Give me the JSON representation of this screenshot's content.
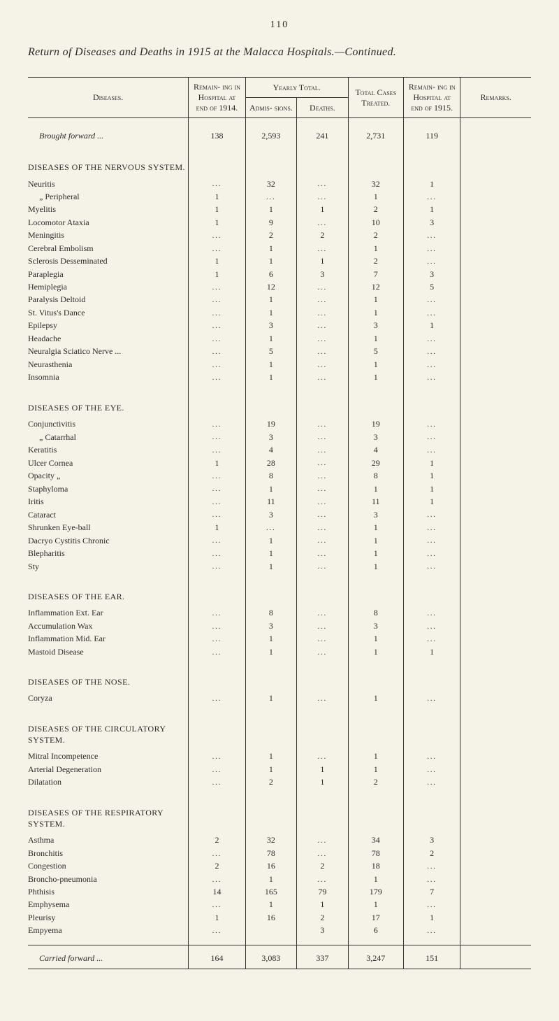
{
  "page_number": "110",
  "title": "Return of Diseases and Deaths in 1915 at the Malacca Hospitals.—Continued.",
  "headers": {
    "diseases": "Diseases.",
    "remain_in_1914": "Remain-\ning in\nHospital\nat end of\n1914.",
    "yearly_total": "Yearly Total.",
    "admissions": "Admis-\nsions.",
    "deaths": "Deaths.",
    "total_cases": "Total\nCases\nTreated.",
    "remain_in_1915": "Remain-\ning in\nHospital\nat end of\n1915.",
    "remarks": "Remarks."
  },
  "brought_forward": {
    "label": "Brought forward ...",
    "r14": "138",
    "adm": "2,593",
    "dth": "241",
    "tot": "2,731",
    "r15": "119"
  },
  "sections": [
    {
      "heading": "DISEASES OF THE NERVOUS SYSTEM.",
      "rows": [
        {
          "label": "Neuritis",
          "r14": "...",
          "adm": "32",
          "dth": "...",
          "tot": "32",
          "r15": "1"
        },
        {
          "label": "„      Peripheral",
          "indent": true,
          "r14": "1",
          "adm": "...",
          "dth": "...",
          "tot": "1",
          "r15": "..."
        },
        {
          "label": "Myelitis",
          "r14": "1",
          "adm": "1",
          "dth": "1",
          "tot": "2",
          "r15": "1"
        },
        {
          "label": "Locomotor Ataxia",
          "r14": "1",
          "adm": "9",
          "dth": "...",
          "tot": "10",
          "r15": "3"
        },
        {
          "label": "Meningitis",
          "r14": "...",
          "adm": "2",
          "dth": "2",
          "tot": "2",
          "r15": "..."
        },
        {
          "label": "Cerebral Embolism",
          "r14": "...",
          "adm": "1",
          "dth": "...",
          "tot": "1",
          "r15": "..."
        },
        {
          "label": "Sclerosis Desseminated",
          "r14": "1",
          "adm": "1",
          "dth": "1",
          "tot": "2",
          "r15": "..."
        },
        {
          "label": "Paraplegia",
          "r14": "1",
          "adm": "6",
          "dth": "3",
          "tot": "7",
          "r15": "3"
        },
        {
          "label": "Hemiplegia",
          "r14": "...",
          "adm": "12",
          "dth": "...",
          "tot": "12",
          "r15": "5"
        },
        {
          "label": "Paralysis Deltoid",
          "r14": "...",
          "adm": "1",
          "dth": "...",
          "tot": "1",
          "r15": "..."
        },
        {
          "label": "St. Vitus's Dance",
          "r14": "...",
          "adm": "1",
          "dth": "...",
          "tot": "1",
          "r15": "..."
        },
        {
          "label": "Epilepsy",
          "r14": "...",
          "adm": "3",
          "dth": "...",
          "tot": "3",
          "r15": "1"
        },
        {
          "label": "Headache",
          "r14": "...",
          "adm": "1",
          "dth": "...",
          "tot": "1",
          "r15": "..."
        },
        {
          "label": "Neuralgia Sciatico Nerve ...",
          "r14": "...",
          "adm": "5",
          "dth": "...",
          "tot": "5",
          "r15": "..."
        },
        {
          "label": "Neurasthenia",
          "r14": "...",
          "adm": "1",
          "dth": "...",
          "tot": "1",
          "r15": "..."
        },
        {
          "label": "Insomnia",
          "r14": "...",
          "adm": "1",
          "dth": "...",
          "tot": "1",
          "r15": "..."
        }
      ]
    },
    {
      "heading": "DISEASES OF THE EYE.",
      "rows": [
        {
          "label": "Conjunctivitis",
          "r14": "...",
          "adm": "19",
          "dth": "...",
          "tot": "19",
          "r15": "..."
        },
        {
          "label": "„           Catarrhal",
          "indent": true,
          "r14": "...",
          "adm": "3",
          "dth": "...",
          "tot": "3",
          "r15": "..."
        },
        {
          "label": "Keratitis",
          "r14": "...",
          "adm": "4",
          "dth": "...",
          "tot": "4",
          "r15": "..."
        },
        {
          "label": "Ulcer Cornea",
          "r14": "1",
          "adm": "28",
          "dth": "...",
          "tot": "29",
          "r15": "1"
        },
        {
          "label": "Opacity  „",
          "r14": "...",
          "adm": "8",
          "dth": "...",
          "tot": "8",
          "r15": "1"
        },
        {
          "label": "Staphyloma",
          "r14": "...",
          "adm": "1",
          "dth": "...",
          "tot": "1",
          "r15": "1"
        },
        {
          "label": "Iritis",
          "r14": "...",
          "adm": "11",
          "dth": "...",
          "tot": "11",
          "r15": "1"
        },
        {
          "label": "Cataract",
          "r14": "...",
          "adm": "3",
          "dth": "...",
          "tot": "3",
          "r15": "..."
        },
        {
          "label": "Shrunken Eye-ball",
          "r14": "1",
          "adm": "...",
          "dth": "...",
          "tot": "1",
          "r15": "..."
        },
        {
          "label": "Dacryo Cystitis Chronic",
          "r14": "...",
          "adm": "1",
          "dth": "...",
          "tot": "1",
          "r15": "..."
        },
        {
          "label": "Blepharitis",
          "r14": "...",
          "adm": "1",
          "dth": "...",
          "tot": "1",
          "r15": "..."
        },
        {
          "label": "Sty",
          "r14": "...",
          "adm": "1",
          "dth": "...",
          "tot": "1",
          "r15": "..."
        }
      ]
    },
    {
      "heading": "DISEASES OF THE EAR.",
      "rows": [
        {
          "label": "Inflammation Ext. Ear",
          "r14": "...",
          "adm": "8",
          "dth": "...",
          "tot": "8",
          "r15": "..."
        },
        {
          "label": "Accumulation Wax",
          "r14": "...",
          "adm": "3",
          "dth": "...",
          "tot": "3",
          "r15": "..."
        },
        {
          "label": "Inflammation Mid. Ear",
          "r14": "...",
          "adm": "1",
          "dth": "...",
          "tot": "1",
          "r15": "..."
        },
        {
          "label": "Mastoid Disease",
          "r14": "...",
          "adm": "1",
          "dth": "...",
          "tot": "1",
          "r15": "1"
        }
      ]
    },
    {
      "heading": "DISEASES OF THE NOSE.",
      "rows": [
        {
          "label": "Coryza",
          "r14": "...",
          "adm": "1",
          "dth": "...",
          "tot": "1",
          "r15": "..."
        }
      ]
    },
    {
      "heading": "DISEASES OF THE CIRCULATORY SYSTEM.",
      "rows": [
        {
          "label": "Mitral Incompetence",
          "r14": "...",
          "adm": "1",
          "dth": "...",
          "tot": "1",
          "r15": "..."
        },
        {
          "label": "Arterial Degeneration",
          "r14": "...",
          "adm": "1",
          "dth": "1",
          "tot": "1",
          "r15": "..."
        },
        {
          "label": "Dilatation",
          "r14": "...",
          "adm": "2",
          "dth": "1",
          "tot": "2",
          "r15": "..."
        }
      ]
    },
    {
      "heading": "DISEASES OF THE RESPIRATORY SYSTEM.",
      "rows": [
        {
          "label": "Asthma",
          "r14": "2",
          "adm": "32",
          "dth": "...",
          "tot": "34",
          "r15": "3"
        },
        {
          "label": "Bronchitis",
          "r14": "...",
          "adm": "78",
          "dth": "...",
          "tot": "78",
          "r15": "2"
        },
        {
          "label": "Congestion",
          "r14": "2",
          "adm": "16",
          "dth": "2",
          "tot": "18",
          "r15": "..."
        },
        {
          "label": "Broncho-pneumonia",
          "r14": "...",
          "adm": "1",
          "dth": "...",
          "tot": "1",
          "r15": "..."
        },
        {
          "label": "Phthisis",
          "r14": "14",
          "adm": "165",
          "dth": "79",
          "tot": "179",
          "r15": "7"
        },
        {
          "label": "Emphysema",
          "r14": "...",
          "adm": "1",
          "dth": "1",
          "tot": "1",
          "r15": "..."
        },
        {
          "label": "Pleurisy",
          "r14": "1",
          "adm": "16",
          "dth": "2",
          "tot": "17",
          "r15": "1"
        },
        {
          "label": "Empyema",
          "r14": "...",
          "adm": "",
          "dth": "3",
          "tot": "6",
          "r15": "..."
        }
      ]
    }
  ],
  "carried_forward": {
    "label": "Carried forward ...",
    "r14": "164",
    "adm": "3,083",
    "dth": "337",
    "tot": "3,247",
    "r15": "151"
  }
}
